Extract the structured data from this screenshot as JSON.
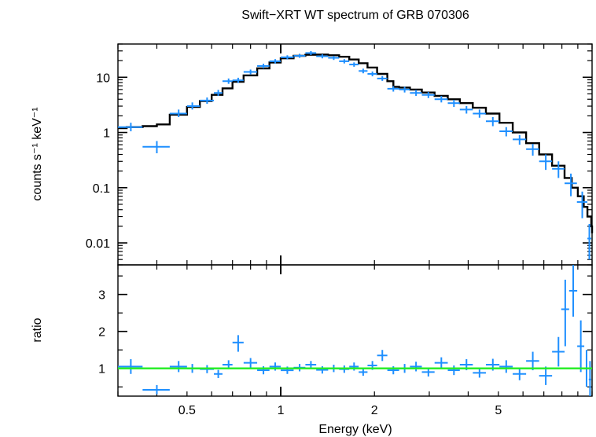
{
  "chart_data": [
    {
      "type": "scatter",
      "panel": "spectrum",
      "title": "Swift−XRT WT spectrum of GRB 070306",
      "xlabel": "Energy (keV)",
      "ylabel": "counts s⁻¹ keV⁻¹",
      "x_scale": "log",
      "y_scale": "log",
      "xlim": [
        0.3,
        10
      ],
      "ylim": [
        0.004,
        40
      ],
      "y_ticks": [
        {
          "value": 0.01,
          "label": "0.01"
        },
        {
          "value": 0.1,
          "label": "0.1"
        },
        {
          "value": 1,
          "label": "1"
        },
        {
          "value": 10,
          "label": "10"
        }
      ],
      "series": [
        {
          "role": "data",
          "color": "#1e8fff",
          "points": [
            {
              "x": 0.33,
              "xlo": 0.3,
              "xhi": 0.36,
              "y": 1.25,
              "ylo": 1.05,
              "yhi": 1.5
            },
            {
              "x": 0.4,
              "xlo": 0.36,
              "xhi": 0.44,
              "y": 0.55,
              "ylo": 0.42,
              "yhi": 0.7
            },
            {
              "x": 0.47,
              "xlo": 0.44,
              "xhi": 0.5,
              "y": 2.2,
              "ylo": 1.9,
              "yhi": 2.6
            },
            {
              "x": 0.52,
              "xlo": 0.5,
              "xhi": 0.55,
              "y": 3.0,
              "ylo": 2.6,
              "yhi": 3.5
            },
            {
              "x": 0.58,
              "xlo": 0.55,
              "xhi": 0.61,
              "y": 3.8,
              "ylo": 3.3,
              "yhi": 4.3
            },
            {
              "x": 0.63,
              "xlo": 0.61,
              "xhi": 0.65,
              "y": 5.2,
              "ylo": 4.6,
              "yhi": 5.9
            },
            {
              "x": 0.68,
              "xlo": 0.65,
              "xhi": 0.7,
              "y": 8.5,
              "ylo": 7.6,
              "yhi": 9.5
            },
            {
              "x": 0.73,
              "xlo": 0.7,
              "xhi": 0.76,
              "y": 8.8,
              "ylo": 7.9,
              "yhi": 9.8
            },
            {
              "x": 0.8,
              "xlo": 0.76,
              "xhi": 0.84,
              "y": 12.5,
              "ylo": 11.3,
              "yhi": 13.8
            },
            {
              "x": 0.88,
              "xlo": 0.84,
              "xhi": 0.92,
              "y": 16.0,
              "ylo": 14.5,
              "yhi": 17.6
            },
            {
              "x": 0.96,
              "xlo": 0.92,
              "xhi": 1.0,
              "y": 19.5,
              "ylo": 17.8,
              "yhi": 21.3
            },
            {
              "x": 1.05,
              "xlo": 1.0,
              "xhi": 1.1,
              "y": 23.0,
              "ylo": 21.0,
              "yhi": 25.0
            },
            {
              "x": 1.15,
              "xlo": 1.1,
              "xhi": 1.2,
              "y": 24.5,
              "ylo": 22.5,
              "yhi": 26.6
            },
            {
              "x": 1.25,
              "xlo": 1.2,
              "xhi": 1.3,
              "y": 27.5,
              "ylo": 25.3,
              "yhi": 29.8
            },
            {
              "x": 1.36,
              "xlo": 1.3,
              "xhi": 1.42,
              "y": 24.0,
              "ylo": 22.0,
              "yhi": 26.0
            },
            {
              "x": 1.48,
              "xlo": 1.42,
              "xhi": 1.54,
              "y": 22.5,
              "ylo": 20.6,
              "yhi": 24.4
            },
            {
              "x": 1.6,
              "xlo": 1.54,
              "xhi": 1.66,
              "y": 19.5,
              "ylo": 17.8,
              "yhi": 21.3
            },
            {
              "x": 1.72,
              "xlo": 1.66,
              "xhi": 1.78,
              "y": 17.0,
              "ylo": 15.5,
              "yhi": 18.6
            },
            {
              "x": 1.84,
              "xlo": 1.78,
              "xhi": 1.9,
              "y": 13.0,
              "ylo": 11.8,
              "yhi": 14.3
            },
            {
              "x": 1.97,
              "xlo": 1.9,
              "xhi": 2.04,
              "y": 11.5,
              "ylo": 10.4,
              "yhi": 12.7
            },
            {
              "x": 2.12,
              "xlo": 2.04,
              "xhi": 2.2,
              "y": 9.5,
              "ylo": 8.6,
              "yhi": 10.5
            },
            {
              "x": 2.3,
              "xlo": 2.2,
              "xhi": 2.4,
              "y": 6.2,
              "ylo": 5.5,
              "yhi": 6.9
            },
            {
              "x": 2.5,
              "xlo": 2.4,
              "xhi": 2.6,
              "y": 6.0,
              "ylo": 5.3,
              "yhi": 6.7
            },
            {
              "x": 2.72,
              "xlo": 2.6,
              "xhi": 2.84,
              "y": 5.2,
              "ylo": 4.6,
              "yhi": 5.9
            },
            {
              "x": 2.98,
              "xlo": 2.84,
              "xhi": 3.12,
              "y": 4.8,
              "ylo": 4.2,
              "yhi": 5.4
            },
            {
              "x": 3.28,
              "xlo": 3.12,
              "xhi": 3.44,
              "y": 4.0,
              "ylo": 3.5,
              "yhi": 4.6
            },
            {
              "x": 3.6,
              "xlo": 3.44,
              "xhi": 3.76,
              "y": 3.4,
              "ylo": 2.9,
              "yhi": 3.9
            },
            {
              "x": 3.95,
              "xlo": 3.76,
              "xhi": 4.14,
              "y": 2.6,
              "ylo": 2.2,
              "yhi": 3.0
            },
            {
              "x": 4.35,
              "xlo": 4.14,
              "xhi": 4.56,
              "y": 2.2,
              "ylo": 1.85,
              "yhi": 2.6
            },
            {
              "x": 4.8,
              "xlo": 4.56,
              "xhi": 5.04,
              "y": 1.6,
              "ylo": 1.3,
              "yhi": 1.9
            },
            {
              "x": 5.3,
              "xlo": 5.04,
              "xhi": 5.56,
              "y": 1.05,
              "ylo": 0.85,
              "yhi": 1.25
            },
            {
              "x": 5.85,
              "xlo": 5.56,
              "xhi": 6.14,
              "y": 0.75,
              "ylo": 0.6,
              "yhi": 0.9
            },
            {
              "x": 6.45,
              "xlo": 6.14,
              "xhi": 6.76,
              "y": 0.5,
              "ylo": 0.38,
              "yhi": 0.62
            },
            {
              "x": 7.1,
              "xlo": 6.76,
              "xhi": 7.44,
              "y": 0.3,
              "ylo": 0.21,
              "yhi": 0.4
            },
            {
              "x": 7.8,
              "xlo": 7.44,
              "xhi": 8.16,
              "y": 0.22,
              "ylo": 0.15,
              "yhi": 0.3
            },
            {
              "x": 8.55,
              "xlo": 8.16,
              "xhi": 8.94,
              "y": 0.12,
              "ylo": 0.07,
              "yhi": 0.18
            },
            {
              "x": 9.3,
              "xlo": 8.94,
              "xhi": 9.66,
              "y": 0.055,
              "ylo": 0.028,
              "yhi": 0.085
            },
            {
              "x": 9.8,
              "xlo": 9.66,
              "xhi": 9.94,
              "y": 0.012,
              "ylo": 0.005,
              "yhi": 0.022
            }
          ]
        },
        {
          "role": "model",
          "color": "#000000",
          "x": [
            0.3,
            0.32,
            0.36,
            0.4,
            0.44,
            0.5,
            0.55,
            0.6,
            0.65,
            0.7,
            0.76,
            0.84,
            0.92,
            1.0,
            1.1,
            1.2,
            1.3,
            1.42,
            1.54,
            1.66,
            1.78,
            1.9,
            2.04,
            2.2,
            2.3,
            2.4,
            2.6,
            2.84,
            3.12,
            3.44,
            3.76,
            4.14,
            4.56,
            5.04,
            5.56,
            6.14,
            6.76,
            7.44,
            8.16,
            8.6,
            9.0,
            9.4,
            9.66,
            9.94,
            10.0
          ],
          "y": [
            1.2,
            1.25,
            1.3,
            1.4,
            2.1,
            2.9,
            3.7,
            4.8,
            6.3,
            8.3,
            10.8,
            14.5,
            18.5,
            22.0,
            24.5,
            25.5,
            25.8,
            25.0,
            23.5,
            21.0,
            18.0,
            15.0,
            11.5,
            8.5,
            6.7,
            6.5,
            6.0,
            5.3,
            4.6,
            4.0,
            3.4,
            2.8,
            2.2,
            1.5,
            1.0,
            0.64,
            0.4,
            0.25,
            0.15,
            0.1,
            0.07,
            0.045,
            0.03,
            0.02,
            0.015
          ]
        }
      ]
    },
    {
      "type": "scatter",
      "panel": "ratio",
      "xlabel": "Energy (keV)",
      "ylabel": "ratio",
      "x_scale": "log",
      "xlim": [
        0.3,
        10
      ],
      "ylim": [
        0.25,
        3.8
      ],
      "x_ticks": [
        {
          "value": 0.5,
          "label": "0.5"
        },
        {
          "value": 1,
          "label": "1"
        },
        {
          "value": 2,
          "label": "2"
        },
        {
          "value": 5,
          "label": "5"
        }
      ],
      "y_ticks": [
        {
          "value": 1,
          "label": "1"
        },
        {
          "value": 2,
          "label": "2"
        },
        {
          "value": 3,
          "label": "3"
        }
      ],
      "reference_line": {
        "y": 1,
        "color": "#22ee22"
      },
      "series": [
        {
          "role": "ratio",
          "color": "#1e8fff",
          "points": [
            {
              "x": 0.33,
              "xlo": 0.3,
              "xhi": 0.36,
              "y": 1.05,
              "ylo": 0.85,
              "yhi": 1.25
            },
            {
              "x": 0.4,
              "xlo": 0.36,
              "xhi": 0.44,
              "y": 0.42,
              "ylo": 0.3,
              "yhi": 0.55
            },
            {
              "x": 0.47,
              "xlo": 0.44,
              "xhi": 0.5,
              "y": 1.05,
              "ylo": 0.9,
              "yhi": 1.2
            },
            {
              "x": 0.52,
              "xlo": 0.5,
              "xhi": 0.55,
              "y": 1.0,
              "ylo": 0.88,
              "yhi": 1.12
            },
            {
              "x": 0.58,
              "xlo": 0.55,
              "xhi": 0.61,
              "y": 0.98,
              "ylo": 0.87,
              "yhi": 1.09
            },
            {
              "x": 0.63,
              "xlo": 0.61,
              "xhi": 0.65,
              "y": 0.85,
              "ylo": 0.74,
              "yhi": 0.96
            },
            {
              "x": 0.68,
              "xlo": 0.65,
              "xhi": 0.7,
              "y": 1.1,
              "ylo": 0.98,
              "yhi": 1.22
            },
            {
              "x": 0.73,
              "xlo": 0.7,
              "xhi": 0.76,
              "y": 1.7,
              "ylo": 1.45,
              "yhi": 1.9
            },
            {
              "x": 0.8,
              "xlo": 0.76,
              "xhi": 0.84,
              "y": 1.15,
              "ylo": 1.02,
              "yhi": 1.28
            },
            {
              "x": 0.88,
              "xlo": 0.84,
              "xhi": 0.92,
              "y": 0.95,
              "ylo": 0.84,
              "yhi": 1.06
            },
            {
              "x": 0.96,
              "xlo": 0.92,
              "xhi": 1.0,
              "y": 1.05,
              "ylo": 0.94,
              "yhi": 1.16
            },
            {
              "x": 1.05,
              "xlo": 1.0,
              "xhi": 1.1,
              "y": 0.95,
              "ylo": 0.85,
              "yhi": 1.05
            },
            {
              "x": 1.15,
              "xlo": 1.1,
              "xhi": 1.2,
              "y": 1.02,
              "ylo": 0.92,
              "yhi": 1.12
            },
            {
              "x": 1.25,
              "xlo": 1.2,
              "xhi": 1.3,
              "y": 1.1,
              "ylo": 1.0,
              "yhi": 1.2
            },
            {
              "x": 1.36,
              "xlo": 1.3,
              "xhi": 1.42,
              "y": 0.96,
              "ylo": 0.86,
              "yhi": 1.06
            },
            {
              "x": 1.48,
              "xlo": 1.42,
              "xhi": 1.54,
              "y": 1.0,
              "ylo": 0.9,
              "yhi": 1.1
            },
            {
              "x": 1.6,
              "xlo": 1.54,
              "xhi": 1.66,
              "y": 0.98,
              "ylo": 0.88,
              "yhi": 1.08
            },
            {
              "x": 1.72,
              "xlo": 1.66,
              "xhi": 1.78,
              "y": 1.05,
              "ylo": 0.94,
              "yhi": 1.16
            },
            {
              "x": 1.84,
              "xlo": 1.78,
              "xhi": 1.9,
              "y": 0.9,
              "ylo": 0.8,
              "yhi": 1.0
            },
            {
              "x": 1.97,
              "xlo": 1.9,
              "xhi": 2.04,
              "y": 1.08,
              "ylo": 0.96,
              "yhi": 1.2
            },
            {
              "x": 2.12,
              "xlo": 2.04,
              "xhi": 2.2,
              "y": 1.35,
              "ylo": 1.2,
              "yhi": 1.5
            },
            {
              "x": 2.3,
              "xlo": 2.2,
              "xhi": 2.4,
              "y": 0.95,
              "ylo": 0.84,
              "yhi": 1.06
            },
            {
              "x": 2.5,
              "xlo": 2.4,
              "xhi": 2.6,
              "y": 1.0,
              "ylo": 0.88,
              "yhi": 1.12
            },
            {
              "x": 2.72,
              "xlo": 2.6,
              "xhi": 2.84,
              "y": 1.05,
              "ylo": 0.92,
              "yhi": 1.18
            },
            {
              "x": 2.98,
              "xlo": 2.84,
              "xhi": 3.12,
              "y": 0.9,
              "ylo": 0.78,
              "yhi": 1.02
            },
            {
              "x": 3.28,
              "xlo": 3.12,
              "xhi": 3.44,
              "y": 1.15,
              "ylo": 1.0,
              "yhi": 1.3
            },
            {
              "x": 3.6,
              "xlo": 3.44,
              "xhi": 3.76,
              "y": 0.95,
              "ylo": 0.82,
              "yhi": 1.08
            },
            {
              "x": 3.95,
              "xlo": 3.76,
              "xhi": 4.14,
              "y": 1.1,
              "ylo": 0.95,
              "yhi": 1.25
            },
            {
              "x": 4.35,
              "xlo": 4.14,
              "xhi": 4.56,
              "y": 0.88,
              "ylo": 0.75,
              "yhi": 1.02
            },
            {
              "x": 4.8,
              "xlo": 4.56,
              "xhi": 5.04,
              "y": 1.1,
              "ylo": 0.94,
              "yhi": 1.26
            },
            {
              "x": 5.3,
              "xlo": 5.04,
              "xhi": 5.56,
              "y": 1.05,
              "ylo": 0.88,
              "yhi": 1.22
            },
            {
              "x": 5.85,
              "xlo": 5.56,
              "xhi": 6.14,
              "y": 0.85,
              "ylo": 0.68,
              "yhi": 1.02
            },
            {
              "x": 6.45,
              "xlo": 6.14,
              "xhi": 6.76,
              "y": 1.2,
              "ylo": 0.95,
              "yhi": 1.45
            },
            {
              "x": 7.1,
              "xlo": 6.76,
              "xhi": 7.44,
              "y": 0.8,
              "ylo": 0.55,
              "yhi": 1.05
            },
            {
              "x": 7.8,
              "xlo": 7.44,
              "xhi": 8.16,
              "y": 1.45,
              "ylo": 1.05,
              "yhi": 1.85
            },
            {
              "x": 8.2,
              "xlo": 7.96,
              "xhi": 8.44,
              "y": 2.6,
              "ylo": 1.6,
              "yhi": 3.4
            },
            {
              "x": 8.7,
              "xlo": 8.44,
              "xhi": 8.96,
              "y": 3.1,
              "ylo": 2.4,
              "yhi": 3.8
            },
            {
              "x": 9.2,
              "xlo": 8.96,
              "xhi": 9.44,
              "y": 1.6,
              "ylo": 0.9,
              "yhi": 2.3
            },
            {
              "x": 9.6,
              "xlo": 9.44,
              "xhi": 9.76,
              "y": 1.0,
              "ylo": 0.5,
              "yhi": 1.5
            },
            {
              "x": 9.85,
              "xlo": 9.76,
              "xhi": 9.94,
              "y": 0.7,
              "ylo": 0.25,
              "yhi": 1.2
            }
          ]
        }
      ]
    }
  ]
}
